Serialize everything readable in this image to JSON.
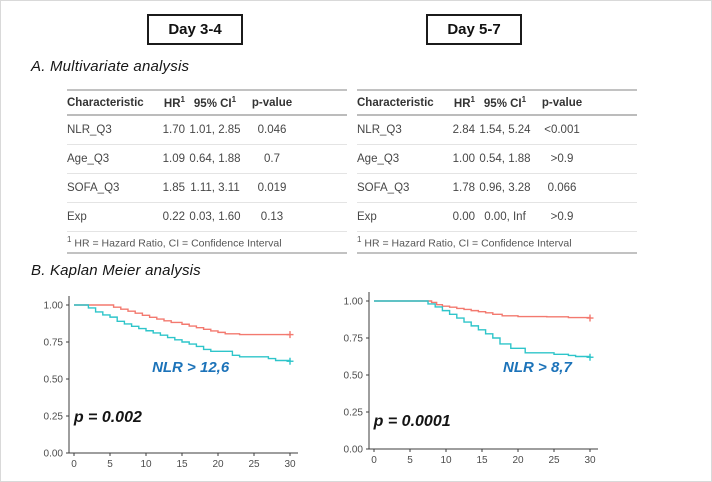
{
  "panels": [
    {
      "label": "Day 3-4"
    },
    {
      "label": "Day 5-7"
    }
  ],
  "sections": {
    "a": "A. Multivariate analysis",
    "b": "B. Kaplan Meier analysis"
  },
  "tables": [
    {
      "panel": "Day 3-4",
      "columns": [
        {
          "label": "Characteristic"
        },
        {
          "label": "HR",
          "sup": "1"
        },
        {
          "label": "95% CI",
          "sup": "1"
        },
        {
          "label": "p-value"
        }
      ],
      "rows": [
        {
          "characteristic": "NLR_Q3",
          "hr": "1.70",
          "ci": "1.01, 2.85",
          "p": "0.046"
        },
        {
          "characteristic": "Age_Q3",
          "hr": "1.09",
          "ci": "0.64, 1.88",
          "p": "0.7"
        },
        {
          "characteristic": "SOFA_Q3",
          "hr": "1.85",
          "ci": "1.11, 3.11",
          "p": "0.019"
        },
        {
          "characteristic": "Exp",
          "hr": "0.22",
          "ci": "0.03, 1.60",
          "p": "0.13"
        }
      ],
      "footnote": {
        "sup": "1",
        "text": "HR = Hazard Ratio, CI = Confidence Interval"
      }
    },
    {
      "panel": "Day 5-7",
      "columns": [
        {
          "label": "Characteristic"
        },
        {
          "label": "HR",
          "sup": "1"
        },
        {
          "label": "95% CI",
          "sup": "1"
        },
        {
          "label": "p-value"
        }
      ],
      "rows": [
        {
          "characteristic": "NLR_Q3",
          "hr": "2.84",
          "ci": "1.54, 5.24",
          "p": "<0.001"
        },
        {
          "characteristic": "Age_Q3",
          "hr": "1.00",
          "ci": "0.54, 1.88",
          "p": ">0.9"
        },
        {
          "characteristic": "SOFA_Q3",
          "hr": "1.78",
          "ci": "0.96, 3.28",
          "p": "0.066"
        },
        {
          "characteristic": "Exp",
          "hr": "0.00",
          "ci": "0.00, Inf",
          "p": ">0.9"
        }
      ],
      "footnote": {
        "sup": "1",
        "text": "HR = Hazard Ratio, CI = Confidence Interval"
      }
    }
  ],
  "chart_data": [
    {
      "type": "line",
      "subtype": "kaplan-meier-step",
      "panel": "Day 3-4",
      "xlim": [
        0,
        30
      ],
      "ylim": [
        0,
        1
      ],
      "x_ticks": [
        "0",
        "5",
        "10",
        "15",
        "20",
        "25",
        "30"
      ],
      "y_ticks": [
        "1.00",
        "0.75",
        "0.50",
        "0.25",
        "0.00"
      ],
      "grid": false,
      "legend": "none",
      "series": [
        {
          "name": "series-red",
          "color": "#f3796f",
          "steps": [
            [
              0,
              1.0
            ],
            [
              5.5,
              0.985
            ],
            [
              6.5,
              0.972
            ],
            [
              7.5,
              0.958
            ],
            [
              8.5,
              0.945
            ],
            [
              9.5,
              0.93
            ],
            [
              10.5,
              0.917
            ],
            [
              11.5,
              0.905
            ],
            [
              12.5,
              0.893
            ],
            [
              13.5,
              0.882
            ],
            [
              15,
              0.87
            ],
            [
              16,
              0.858
            ],
            [
              17,
              0.847
            ],
            [
              18,
              0.836
            ],
            [
              19,
              0.825
            ],
            [
              20,
              0.815
            ],
            [
              21,
              0.805
            ],
            [
              23,
              0.8
            ],
            [
              30,
              0.8
            ]
          ]
        },
        {
          "name": "series-cyan",
          "color": "#2ec5ca",
          "steps": [
            [
              0,
              1.0
            ],
            [
              2,
              0.98
            ],
            [
              3,
              0.953
            ],
            [
              4,
              0.933
            ],
            [
              5,
              0.918
            ],
            [
              6,
              0.89
            ],
            [
              7,
              0.872
            ],
            [
              8,
              0.856
            ],
            [
              9,
              0.841
            ],
            [
              10,
              0.826
            ],
            [
              11,
              0.811
            ],
            [
              12,
              0.796
            ],
            [
              13,
              0.78
            ],
            [
              14,
              0.765
            ],
            [
              15,
              0.75
            ],
            [
              16,
              0.736
            ],
            [
              17,
              0.72
            ],
            [
              18,
              0.7
            ],
            [
              19,
              0.687
            ],
            [
              22,
              0.66
            ],
            [
              23,
              0.65
            ],
            [
              27,
              0.638
            ],
            [
              28,
              0.625
            ],
            [
              30,
              0.62
            ]
          ]
        }
      ],
      "annotations": [
        {
          "text": "NLR > 12,6",
          "x": 16.2,
          "y": 0.547,
          "color": "#1c73b9",
          "size": 15,
          "italic": true,
          "bold": true
        },
        {
          "text": "p = 0.002",
          "x": 4.7,
          "y": 0.21,
          "color": "#141414",
          "size": 16,
          "italic": true,
          "bold": true
        }
      ]
    },
    {
      "type": "line",
      "subtype": "kaplan-meier-step",
      "panel": "Day 5-7",
      "xlim": [
        0,
        30
      ],
      "ylim": [
        0,
        1
      ],
      "x_ticks": [
        "0",
        "5",
        "10",
        "15",
        "20",
        "25",
        "30"
      ],
      "y_ticks": [
        "1.00",
        "0.75",
        "0.50",
        "0.25",
        "0.00"
      ],
      "grid": false,
      "legend": "none",
      "series": [
        {
          "name": "series-red",
          "color": "#f3796f",
          "steps": [
            [
              0,
              1.0
            ],
            [
              8,
              0.99
            ],
            [
              8.7,
              0.975
            ],
            [
              9.5,
              0.965
            ],
            [
              10.5,
              0.958
            ],
            [
              11.5,
              0.95
            ],
            [
              12.5,
              0.943
            ],
            [
              13.5,
              0.935
            ],
            [
              14.5,
              0.928
            ],
            [
              15.5,
              0.92
            ],
            [
              16.5,
              0.91
            ],
            [
              17.8,
              0.9
            ],
            [
              20,
              0.895
            ],
            [
              24,
              0.893
            ],
            [
              27,
              0.888
            ],
            [
              30,
              0.885
            ]
          ]
        },
        {
          "name": "series-cyan",
          "color": "#2ec5ca",
          "steps": [
            [
              0,
              1.0
            ],
            [
              7.5,
              0.98
            ],
            [
              8.5,
              0.96
            ],
            [
              9.5,
              0.935
            ],
            [
              10.5,
              0.91
            ],
            [
              11.5,
              0.885
            ],
            [
              12.5,
              0.858
            ],
            [
              13.5,
              0.832
            ],
            [
              14.5,
              0.805
            ],
            [
              15.5,
              0.778
            ],
            [
              16.5,
              0.75
            ],
            [
              17.5,
              0.71
            ],
            [
              19,
              0.68
            ],
            [
              21,
              0.65
            ],
            [
              25,
              0.64
            ],
            [
              27,
              0.632
            ],
            [
              28,
              0.625
            ],
            [
              30,
              0.62
            ]
          ]
        }
      ],
      "annotations": [
        {
          "text": "NLR > 8,7",
          "x": 22.7,
          "y": 0.52,
          "color": "#1c73b9",
          "size": 15,
          "italic": true,
          "bold": true
        },
        {
          "text": "p = 0.0001",
          "x": 5.3,
          "y": 0.155,
          "color": "#141414",
          "size": 16,
          "italic": true,
          "bold": true
        }
      ]
    }
  ],
  "colors": {
    "red_curve": "#f3796f",
    "cyan_curve": "#2ec5ca",
    "annotation_blue": "#1c73b9",
    "axis_text": "#4d4d4d",
    "table_text": "#474747"
  }
}
